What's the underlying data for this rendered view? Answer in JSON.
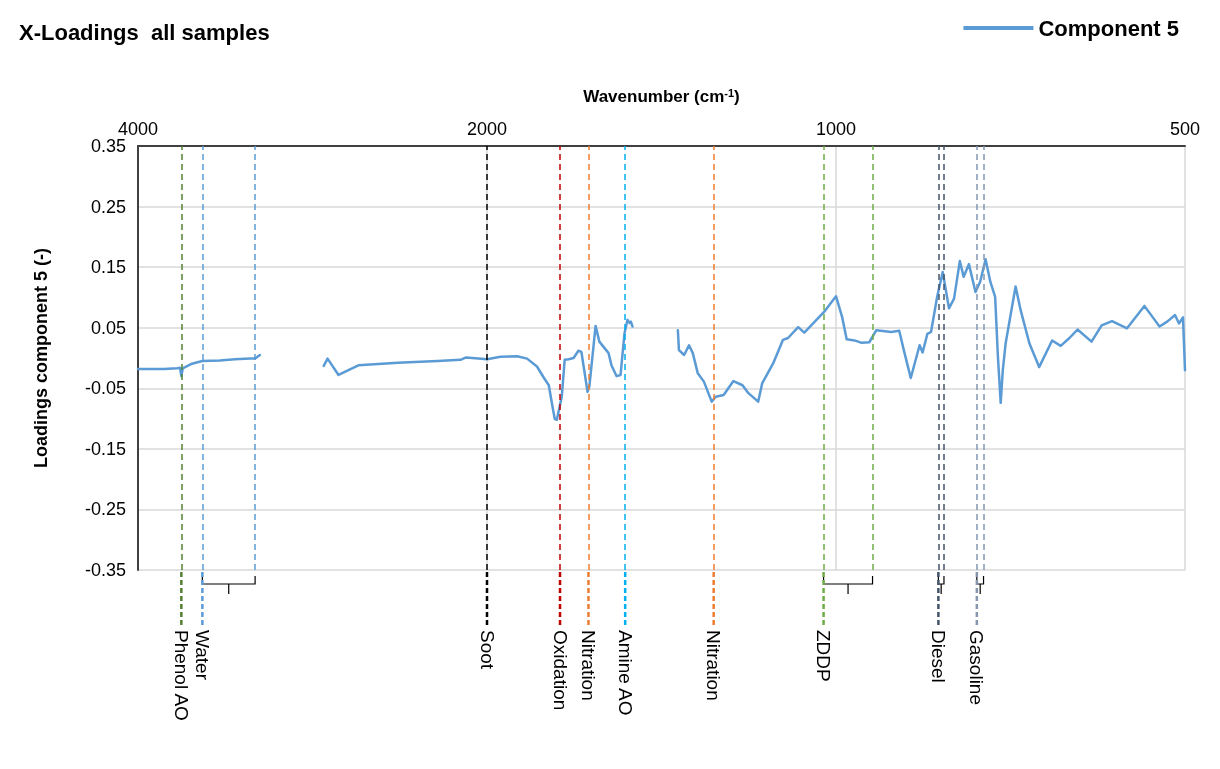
{
  "chart_data": {
    "type": "line",
    "title": "X-Loadings  all samples",
    "xlabel": "Wavenumber (cm$^{-1}$)",
    "ylabel": "Loadings component 5 (-)",
    "log": "x",
    "xlim": [
      4000,
      500
    ],
    "xticks": [
      4000,
      2000,
      1000,
      500
    ],
    "ylim": [
      -0.35,
      0.35
    ],
    "yticks": [
      -0.35,
      -0.25,
      -0.15,
      -0.05,
      0.05,
      0.15,
      0.25,
      0.35
    ],
    "grid": true,
    "legend": "top right",
    "marker": "none",
    "line_style": "solid",
    "series": [
      {
        "name": "Component 5",
        "color": "#5b9bd5",
        "x": [
          4000,
          3900,
          3800,
          3700,
          3680,
          3670,
          3660,
          3600,
          3520,
          3400,
          3300,
          3200,
          3170,
          3140,
          3000,
          2766,
          2745,
          2686,
          2582,
          2387,
          2206,
          2108,
          2085,
          1999,
          1948,
          1884,
          1847,
          1811,
          1786,
          1769,
          1758,
          1748,
          1741,
          1724,
          1714,
          1701,
          1684,
          1668,
          1658,
          1638,
          1632,
          1612,
          1600,
          1571,
          1562,
          1546,
          1534,
          1522,
          1513,
          1507,
          1503,
          1498,
          1450,
          1369,
          1366,
          1352,
          1339,
          1329,
          1316,
          1300,
          1280,
          1270,
          1250,
          1226,
          1204,
          1190,
          1167,
          1158,
          1133,
          1111,
          1100,
          1078,
          1065,
          1043,
          1024,
          1000,
          988,
          979,
          964,
          950,
          936,
          923,
          896,
          882,
          874,
          862,
          847,
          842,
          834,
          828,
          818,
          809,
          799,
          791,
          782,
          776,
          768,
          758,
          751,
          743,
          736,
          729,
          725,
          721,
          718,
          714,
          700,
          693,
          681,
          668,
          651,
          640,
          629,
          619,
          602,
          590,
          578,
          561,
          542,
          532,
          526,
          518,
          510,
          506,
          502,
          500
        ],
        "values": [
          -0.018,
          -0.018,
          -0.018,
          -0.017,
          -0.016,
          -0.03,
          -0.017,
          -0.01,
          -0.005,
          -0.004,
          -0.002,
          -0.001,
          -0.001,
          0.005,
          null,
          -0.013,
          -0.001,
          -0.028,
          -0.012,
          -0.008,
          -0.005,
          -0.003,
          0.001,
          -0.002,
          0.002,
          0.003,
          -0.001,
          -0.014,
          -0.033,
          -0.045,
          -0.075,
          -0.101,
          -0.102,
          -0.064,
          -0.003,
          -0.002,
          0.0,
          0.012,
          0.01,
          -0.056,
          -0.047,
          0.053,
          0.027,
          0.008,
          -0.012,
          -0.03,
          -0.028,
          0.041,
          0.063,
          0.058,
          0.06,
          0.052,
          null,
          0.046,
          0.013,
          0.005,
          0.021,
          0.008,
          -0.025,
          -0.039,
          -0.072,
          -0.064,
          -0.061,
          -0.038,
          -0.045,
          -0.058,
          -0.072,
          -0.042,
          -0.009,
          0.03,
          0.033,
          0.051,
          0.042,
          0.06,
          0.076,
          0.102,
          0.068,
          0.031,
          0.029,
          0.025,
          0.026,
          0.046,
          0.043,
          0.045,
          0.013,
          -0.033,
          0.021,
          0.009,
          0.04,
          0.043,
          0.101,
          0.142,
          0.082,
          0.098,
          0.16,
          0.134,
          0.155,
          0.109,
          0.126,
          0.163,
          0.126,
          0.101,
          0.002,
          -0.074,
          -0.02,
          0.024,
          0.118,
          0.079,
          0.024,
          -0.015,
          0.029,
          0.02,
          0.033,
          0.047,
          0.027,
          0.054,
          0.061,
          0.049,
          0.086,
          0.065,
          0.052,
          0.06,
          0.071,
          0.057,
          0.067,
          -0.02
        ]
      }
    ],
    "ref_lines": [
      {
        "axis": "x",
        "value": 3670,
        "label": "Phenol AO",
        "color": "#548235",
        "line_style": "dashed"
      },
      {
        "axis": "x",
        "value": 2000,
        "label": "Soot",
        "color": "#000000",
        "line_style": "dashed"
      },
      {
        "axis": "x",
        "value": 1730,
        "label": "Oxidation",
        "color": "#c00000",
        "line_style": "dashed"
      },
      {
        "axis": "x",
        "value": 1635,
        "label": "Nitration",
        "color": "#ed7d31",
        "line_style": "dashed"
      },
      {
        "axis": "x",
        "value": 1520,
        "label": "Amine AO",
        "color": "#00b0f0",
        "line_style": "dashed"
      },
      {
        "axis": "x",
        "value": 1275,
        "label": "Nitration",
        "color": "#ed7d31",
        "line_style": "dashed"
      },
      {
        "axis": "x",
        "value": 3520,
        "label": "Water",
        "color": "#5b9bd5",
        "line_style": "dashed"
      },
      {
        "axis": "x",
        "value": 3170,
        "label": null,
        "color": "#5b9bd5",
        "line_style": "dashed"
      },
      {
        "axis": "x",
        "value": 1025,
        "label": "ZDDP",
        "color": "#70ad47",
        "line_style": "dashed"
      },
      {
        "axis": "x",
        "value": 930,
        "label": null,
        "color": "#70ad47",
        "line_style": "dashed"
      },
      {
        "axis": "x",
        "value": 816,
        "label": "Diesel",
        "color": "#44546a",
        "line_style": "dashed"
      },
      {
        "axis": "x",
        "value": 807,
        "label": null,
        "color": "#44546a",
        "line_style": "dashed"
      },
      {
        "axis": "x",
        "value": 756,
        "label": "Gasoline",
        "color": "#8497b0",
        "line_style": "dashed"
      },
      {
        "axis": "x",
        "value": 746,
        "label": null,
        "color": "#8497b0",
        "line_style": "dashed"
      }
    ]
  }
}
